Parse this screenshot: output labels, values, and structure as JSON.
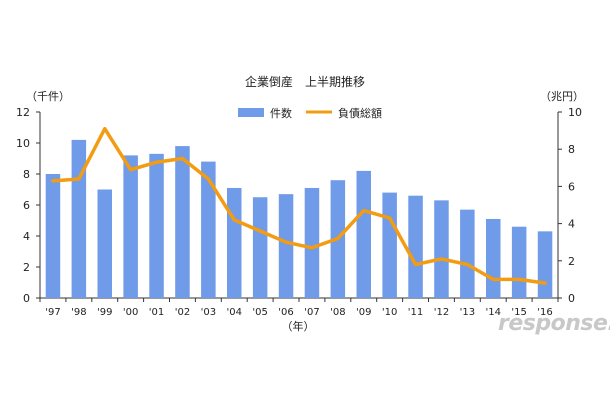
{
  "chart_data": {
    "type": "bar+line",
    "title": "企業倒産　上半期推移",
    "categories": [
      "'97",
      "'98",
      "'99",
      "'00",
      "'01",
      "'02",
      "'03",
      "'04",
      "'05",
      "'06",
      "'07",
      "'08",
      "'09",
      "'10",
      "'11",
      "'12",
      "'13",
      "'14",
      "'15",
      "'16"
    ],
    "series": [
      {
        "name": "件数",
        "type": "bar",
        "axis": "left",
        "color": "#6f9be8",
        "values": [
          8.0,
          10.2,
          7.0,
          9.2,
          9.3,
          9.8,
          8.8,
          7.1,
          6.5,
          6.7,
          7.1,
          7.6,
          8.2,
          6.8,
          6.6,
          6.3,
          5.7,
          5.1,
          4.6,
          4.3
        ]
      },
      {
        "name": "負債総額",
        "type": "line",
        "axis": "right",
        "color": "#f39c12",
        "values": [
          6.3,
          6.4,
          9.1,
          6.9,
          7.3,
          7.5,
          6.4,
          4.2,
          3.6,
          3.0,
          2.7,
          3.2,
          4.7,
          4.3,
          1.8,
          2.1,
          1.8,
          1.0,
          1.0,
          0.8
        ]
      }
    ],
    "left_axis": {
      "unit": "（千件）",
      "ylim": [
        0,
        12
      ],
      "ticks": [
        "0",
        "2",
        "4",
        "6",
        "8",
        "10",
        "12"
      ]
    },
    "right_axis": {
      "unit": "（兆円）",
      "ylim": [
        0,
        10
      ],
      "ticks": [
        "0",
        "2",
        "4",
        "6",
        "8",
        "10"
      ]
    },
    "xlabel": "（年）",
    "legend_position": "top-center",
    "grid": false
  },
  "watermark": {
    "text": "response."
  }
}
